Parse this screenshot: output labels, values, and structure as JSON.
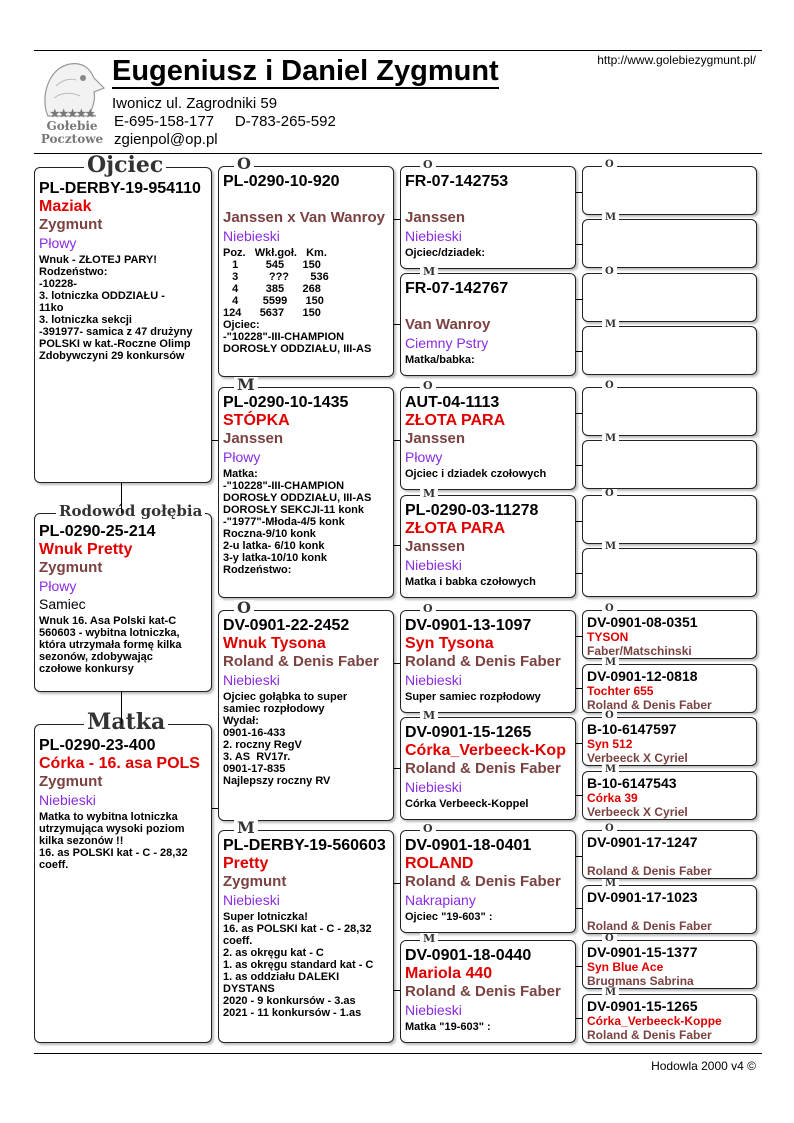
{
  "header": {
    "title": "Eugeniusz i Daniel Zygmunt",
    "address": "Iwonicz ul. Zagrodniki 59",
    "phones": "E-695-158-177     D-783-265-592",
    "email": "zgienpol@op.pl",
    "website": "http://www.golebiezygmunt.pl/",
    "logo": {
      "stars": "★★★★★",
      "line1": "Gołebie",
      "line2": "Pocztowe",
      "icon": "pigeon-head-icon"
    }
  },
  "footer": "Hodowla 2000 v4 ©",
  "colors": {
    "name": "#e00000",
    "breeder": "#7b4242",
    "color": "#8a2be2"
  },
  "pedigree": [
    {
      "label": "Ojciec",
      "ring": "PL-DERBY-19-954110",
      "name": "Maziak",
      "breeder": "Zygmunt",
      "color": "Płowy",
      "notes": [
        "Wnuk - ZŁOTEJ PARY!",
        "Rodzeństwo:",
        "-10228-",
        "3. lotniczka ODDZIAŁU -",
        "11ko",
        "3. lotniczka sekcji",
        "-391977- samica z 47 drużyny",
        "POLSKI w kat.-Roczne Olimp",
        "Zdobywczyni 29 konkursów"
      ]
    },
    {
      "label": "Rodowód gołębia",
      "ring": "PL-0290-25-214",
      "name": "Wnuk Pretty",
      "breeder": "Zygmunt",
      "color": "Płowy",
      "sex": "Samiec",
      "notes": [
        "Wnuk 16. Asa Polski kat-C",
        "560603 - wybitna lotniczka,",
        "która utrzymała formę kilka",
        "sezonów, zdobywając",
        "czołowe konkursy"
      ]
    },
    {
      "label": "Matka",
      "ring": "PL-0290-23-400",
      "name": "Córka - 16. asa POLS",
      "breeder": "Zygmunt",
      "color": "Niebieski",
      "notes": [
        "Matka to wybitna lotniczka",
        "utrzymująca wysoki poziom",
        "kilka sezonów !!",
        "16. as POLSKI kat - C - 28,32",
        "coeff."
      ]
    },
    {
      "label": "O",
      "ring": "PL-0290-10-920",
      "name": "",
      "breeder": "Janssen x Van Wanroy",
      "color": "Niebieski",
      "notes": [
        "Poz.   Wkł.goł.   Km.",
        "   1         545      150",
        "   3          ???       536",
        "   4         385      268",
        "   4        5599      150",
        "124      5637      150",
        "Ojciec:",
        "-\"10228\"-III-CHAMPION",
        "DOROSŁY ODDZIAŁU, III-AS"
      ]
    },
    {
      "label": "M",
      "ring": "PL-0290-10-1435",
      "name": " STÓPKA",
      "breeder": "Janssen",
      "color": "Płowy",
      "notes": [
        "Matka:",
        "-\"10228\"-III-CHAMPION",
        "DOROSŁY ODDZIAŁU, III-AS",
        "DOROSŁY SEKCJI-11 konk",
        "-\"1977\"-Młoda-4/5 konk",
        "Roczna-9/10 konk",
        "2-u latka- 6/10 konk",
        "3-y latka-10/10 konk",
        "Rodzeństwo:"
      ]
    },
    {
      "label": "O",
      "ring": "DV-0901-22-2452",
      "name": "Wnuk Tysona",
      "breeder": "Roland & Denis Faber",
      "color": "Niebieski",
      "notes": [
        "Ojciec gołąbka to super",
        "samiec rozpłodowy",
        "Wydał:",
        "0901-16-433",
        "2. roczny RegV",
        "3. AS  RV17r.",
        "0901-17-835",
        "Najlepszy roczny RV"
      ]
    },
    {
      "label": "M",
      "ring": "PL-DERBY-19-560603",
      "name": "Pretty",
      "breeder": "Zygmunt",
      "color": "Niebieski",
      "notes": [
        "Super lotniczka!",
        "16. as POLSKI kat - C - 28,32",
        "coeff.",
        "2. as okręgu kat - C",
        "1. as okręgu standard kat - C",
        "1. as oddziału DALEKI",
        "DYSTANS",
        "2020 - 9 konkursów - 3.as",
        "2021 - 11 konkursów - 1.as"
      ]
    },
    {
      "label": "O",
      "ring": "FR-07-142753",
      "name": "",
      "breeder": "Janssen",
      "color": "Niebieski",
      "notes": [
        "Ojciec/dziadek:"
      ]
    },
    {
      "label": "M",
      "ring": "FR-07-142767",
      "name": "",
      "breeder": "Van Wanroy",
      "color": "Ciemny Pstry",
      "notes": [
        "Matka/babka:"
      ]
    },
    {
      "label": "O",
      "ring": "AUT-04-1113",
      "name": "ZŁOTA PARA",
      "breeder": "Janssen",
      "color": "Płowy",
      "notes": [
        "Ojciec i dziadek czołowych"
      ]
    },
    {
      "label": "M",
      "ring": "PL-0290-03-11278",
      "name": "ZŁOTA PARA",
      "breeder": "Janssen",
      "color": "Niebieski",
      "notes": [
        "Matka i babka czołowych"
      ]
    },
    {
      "label": "O",
      "ring": "DV-0901-13-1097",
      "name": "Syn Tysona",
      "breeder": "Roland & Denis Faber",
      "color": "Niebieski",
      "notes": [
        "Super samiec rozpłodowy"
      ]
    },
    {
      "label": "M",
      "ring": "DV-0901-15-1265",
      "name": "Córka_Verbeeck-Kop",
      "breeder": "Roland & Denis Faber",
      "color": "Niebieski",
      "notes": [
        "Córka Verbeeck-Koppel"
      ]
    },
    {
      "label": "O",
      "ring": "DV-0901-18-0401",
      "name": "ROLAND",
      "breeder": "Roland & Denis Faber",
      "color": "Nakrapiany",
      "notes": [
        "Ojciec \"19-603\" :"
      ]
    },
    {
      "label": "M",
      "ring": "DV-0901-18-0440",
      "name": "Mariola 440",
      "breeder": "Roland & Denis Faber",
      "color": "Niebieski",
      "notes": [
        "Matka \"19-603\" :"
      ]
    },
    {
      "label": "O"
    },
    {
      "label": "M"
    },
    {
      "label": "O"
    },
    {
      "label": "M"
    },
    {
      "label": "O"
    },
    {
      "label": "M"
    },
    {
      "label": "O"
    },
    {
      "label": "M"
    },
    {
      "label": "O",
      "ring": "DV-0901-08-0351",
      "name": "TYSON",
      "breeder": "Faber/Matschinski"
    },
    {
      "label": "M",
      "ring": "DV-0901-12-0818",
      "name": "Tochter 655",
      "breeder": "Roland & Denis Faber"
    },
    {
      "label": "O",
      "ring": "B-10-6147597",
      "name": "Syn 512",
      "breeder": "Verbeeck X Cyriel"
    },
    {
      "label": "M",
      "ring": "B-10-6147543",
      "name": "Córka 39",
      "breeder": "Verbeeck X Cyriel"
    },
    {
      "label": "O",
      "ring": "DV-0901-17-1247",
      "name": "",
      "breeder": "Roland & Denis Faber"
    },
    {
      "label": "M",
      "ring": "DV-0901-17-1023",
      "name": "",
      "breeder": "Roland & Denis Faber"
    },
    {
      "label": "O",
      "ring": "DV-0901-15-1377",
      "name": "Syn Blue Ace",
      "breeder": "Brugmans Sabrina"
    },
    {
      "label": "M",
      "ring": "DV-0901-15-1265",
      "name": "Córka_Verbeeck-Koppe",
      "breeder": "Roland & Denis Faber"
    }
  ]
}
